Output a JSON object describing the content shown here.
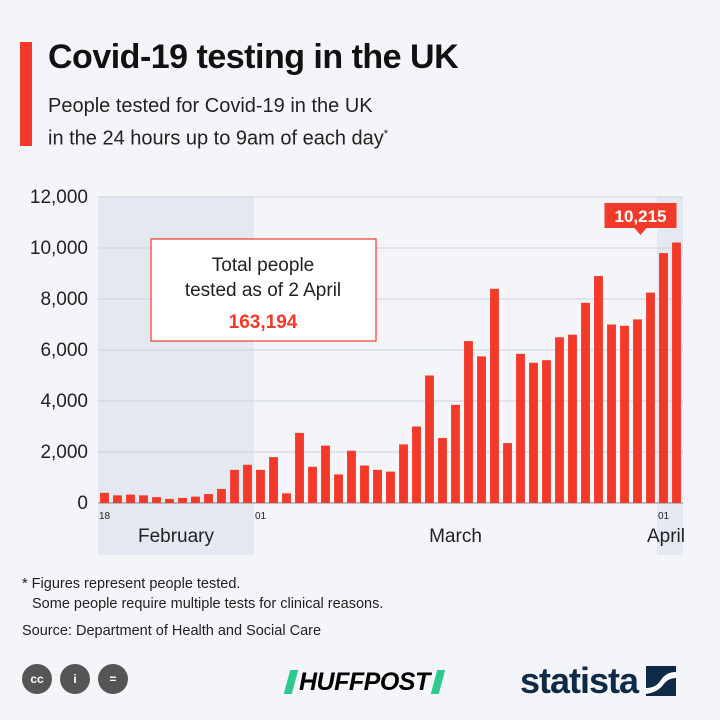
{
  "header": {
    "title": "Covid-19 testing in the UK",
    "subtitle_line1": "People tested for Covid-19 in the UK",
    "subtitle_line2": "in the 24 hours up to 9am of each day",
    "subtitle_mark": "*"
  },
  "annotation": {
    "line1": "Total people",
    "line2": "tested as of 2 April",
    "value": "163,194"
  },
  "chart_data": {
    "type": "bar",
    "y_ticks": [
      0,
      2000,
      4000,
      6000,
      8000,
      10000,
      12000
    ],
    "y_tick_labels": [
      "0",
      "2,000",
      "4,000",
      "6,000",
      "8,000",
      "10,000",
      "12,000"
    ],
    "ylim": [
      0,
      12000
    ],
    "grid": true,
    "x_tick_labels": [
      {
        "category": "18 Feb",
        "label": "18"
      },
      {
        "category": "01 Mar",
        "label": "01"
      },
      {
        "category": "01 Apr",
        "label": "01"
      }
    ],
    "month_labels": [
      {
        "label": "February",
        "from": "18 Feb",
        "to": "29 Feb"
      },
      {
        "label": "March",
        "from": "01 Mar",
        "to": "31 Mar"
      },
      {
        "label": "April",
        "from": "01 Apr",
        "to": "02 Apr"
      }
    ],
    "highlight": {
      "category": "02 Apr",
      "label": "10,215"
    },
    "bar_color": "#f2392a",
    "shade_color": "#e3e8f1",
    "categories": [
      "18 Feb",
      "19 Feb",
      "20 Feb",
      "21 Feb",
      "22 Feb",
      "23 Feb",
      "24 Feb",
      "25 Feb",
      "26 Feb",
      "27 Feb",
      "28 Feb",
      "29 Feb",
      "01 Mar",
      "02 Mar",
      "03 Mar",
      "04 Mar",
      "05 Mar",
      "06 Mar",
      "07 Mar",
      "08 Mar",
      "09 Mar",
      "10 Mar",
      "11 Mar",
      "12 Mar",
      "13 Mar",
      "14 Mar",
      "15 Mar",
      "16 Mar",
      "17 Mar",
      "18 Mar",
      "19 Mar",
      "20 Mar",
      "21 Mar",
      "22 Mar",
      "23 Mar",
      "24 Mar",
      "25 Mar",
      "26 Mar",
      "27 Mar",
      "28 Mar",
      "29 Mar",
      "30 Mar",
      "31 Mar",
      "01 Apr",
      "02 Apr"
    ],
    "values": [
      400,
      300,
      330,
      300,
      230,
      160,
      200,
      250,
      350,
      550,
      1300,
      1500,
      1300,
      1800,
      380,
      2750,
      1420,
      2250,
      1120,
      2050,
      1470,
      1300,
      1230,
      2300,
      3000,
      5000,
      2550,
      3850,
      6350,
      5750,
      8400,
      2350,
      5850,
      5500,
      5600,
      6500,
      6600,
      7850,
      8900,
      7000,
      6950,
      7200,
      8250,
      9800,
      10215
    ]
  },
  "footer": {
    "footnote_line1": "* Figures represent people tested.",
    "footnote_line2": "Some people require multiple tests for clinical reasons.",
    "source": "Source: Department of Health and Social Care",
    "cc_icons": [
      "cc-icon",
      "attribution-icon",
      "no-derivatives-icon"
    ],
    "cc_glyphs": [
      "cc",
      "i",
      "="
    ],
    "huffpost": "HUFFPOST",
    "statista": "statista"
  }
}
